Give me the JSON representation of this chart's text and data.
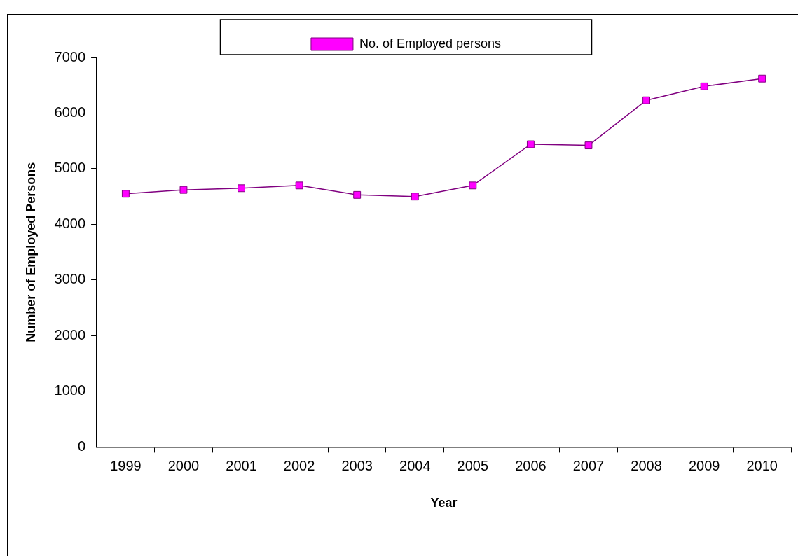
{
  "chart_data": {
    "type": "line",
    "xlabel": "Year",
    "ylabel": "Number of Employed Persons",
    "categories": [
      "1999",
      "2000",
      "2001",
      "2002",
      "2003",
      "2004",
      "2005",
      "2006",
      "2007",
      "2008",
      "2009",
      "2010"
    ],
    "series": [
      {
        "name": "No. of Employed persons",
        "color": "#800080",
        "values": [
          4550,
          4620,
          4650,
          4700,
          4530,
          4500,
          4700,
          5440,
          5420,
          6230,
          6480,
          6620
        ]
      }
    ],
    "ylim": [
      0,
      7000
    ],
    "yticks": [
      0,
      1000,
      2000,
      3000,
      4000,
      5000,
      6000,
      7000
    ],
    "grid": false,
    "legend": "top",
    "marker": "square",
    "line_style": "solid"
  }
}
